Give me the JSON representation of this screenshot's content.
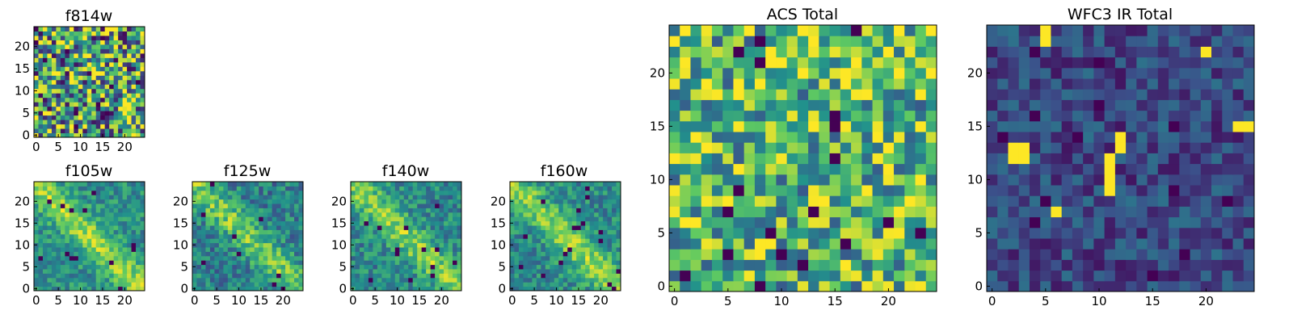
{
  "figure": {
    "colormap": [
      "#440154",
      "#3b528b",
      "#21918c",
      "#5ec962",
      "#fde725"
    ],
    "grid": false
  },
  "chart_data": [
    {
      "id": "f814w",
      "type": "heatmap",
      "title": "f814w",
      "size": 25,
      "xticks": [
        0,
        5,
        10,
        15,
        20
      ],
      "yticks": [
        0,
        5,
        10,
        15,
        20
      ],
      "pattern": "noise",
      "mean": 0.58,
      "spread": 0.55,
      "seed": 11
    },
    {
      "id": "f105w",
      "type": "heatmap",
      "title": "f105w",
      "size": 25,
      "xticks": [
        0,
        5,
        10,
        15,
        20
      ],
      "yticks": [
        0,
        5,
        10,
        15,
        20
      ],
      "pattern": "diagonal",
      "mean": 0.62,
      "spread": 0.35,
      "seed": 23
    },
    {
      "id": "f125w",
      "type": "heatmap",
      "title": "f125w",
      "size": 25,
      "xticks": [
        0,
        5,
        10,
        15,
        20
      ],
      "yticks": [
        0,
        5,
        10,
        15,
        20
      ],
      "pattern": "diagonal",
      "mean": 0.55,
      "spread": 0.4,
      "seed": 37
    },
    {
      "id": "f140w",
      "type": "heatmap",
      "title": "f140w",
      "size": 25,
      "xticks": [
        0,
        5,
        10,
        15,
        20
      ],
      "yticks": [
        0,
        5,
        10,
        15,
        20
      ],
      "pattern": "diagonal",
      "mean": 0.58,
      "spread": 0.38,
      "seed": 41
    },
    {
      "id": "f160w",
      "type": "heatmap",
      "title": "f160w",
      "size": 25,
      "xticks": [
        0,
        5,
        10,
        15,
        20
      ],
      "yticks": [
        0,
        5,
        10,
        15,
        20
      ],
      "pattern": "diagonal",
      "mean": 0.6,
      "spread": 0.36,
      "seed": 53
    },
    {
      "id": "acs_total",
      "type": "heatmap",
      "title": "ACS Total",
      "size": 25,
      "xticks": [
        0,
        5,
        10,
        15,
        20
      ],
      "yticks": [
        0,
        5,
        10,
        15,
        20
      ],
      "pattern": "noise",
      "mean": 0.66,
      "spread": 0.38,
      "seed": 67,
      "hot_pixels": [
        [
          1,
          6
        ],
        [
          3,
          13
        ],
        [
          0,
          12
        ],
        [
          6,
          19
        ],
        [
          12,
          20
        ],
        [
          16,
          2
        ],
        [
          23,
          18
        ]
      ]
    },
    {
      "id": "wfc3_ir_total",
      "type": "heatmap",
      "title": "WFC3 IR Total",
      "size": 25,
      "xticks": [
        0,
        5,
        10,
        15,
        20
      ],
      "yticks": [
        0,
        5,
        10,
        15,
        20
      ],
      "pattern": "noise",
      "mean": 0.22,
      "spread": 0.16,
      "seed": 79,
      "hot_pixels": [
        [
          2,
          13
        ],
        [
          3,
          13
        ],
        [
          2,
          12
        ],
        [
          3,
          12
        ],
        [
          11,
          9
        ],
        [
          11,
          10
        ],
        [
          11,
          11
        ],
        [
          11,
          12
        ],
        [
          12,
          13
        ],
        [
          12,
          14
        ],
        [
          5,
          24
        ],
        [
          5,
          23
        ],
        [
          20,
          22
        ],
        [
          23,
          15
        ],
        [
          24,
          15
        ],
        [
          6,
          7
        ]
      ]
    }
  ]
}
